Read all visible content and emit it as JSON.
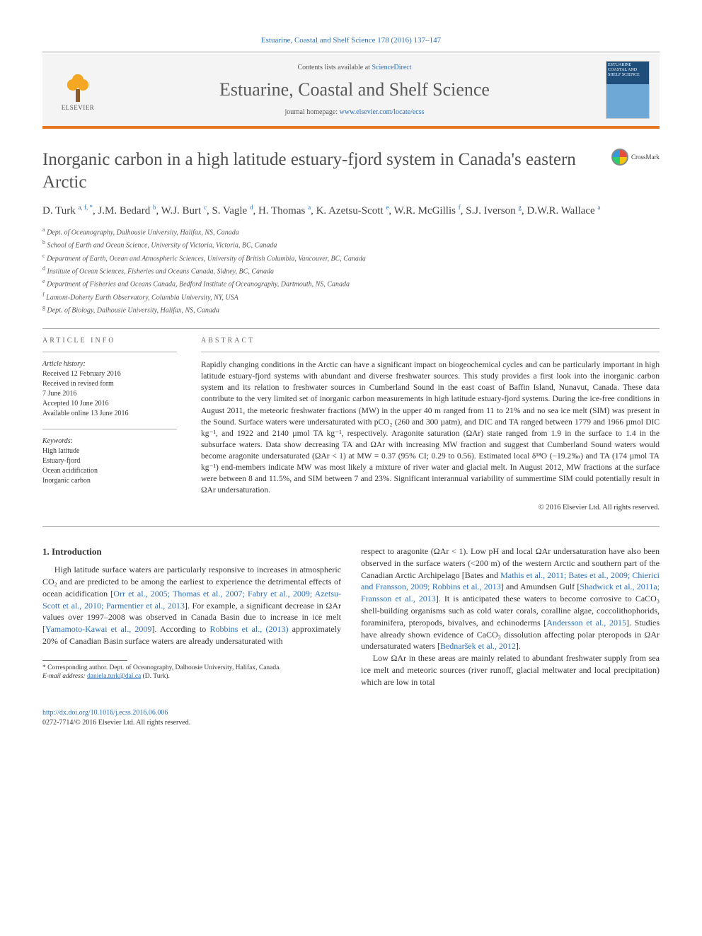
{
  "citation": "Estuarine, Coastal and Shelf Science 178 (2016) 137–147",
  "banner": {
    "contents_prefix": "Contents lists available at ",
    "contents_link": "ScienceDirect",
    "journal": "Estuarine, Coastal and Shelf Science",
    "homepage_prefix": "journal homepage: ",
    "homepage_link": "www.elsevier.com/locate/ecss",
    "elsevier_word": "ELSEVIER",
    "cover_text": "ESTUARINE COASTAL AND SHELF SCIENCE"
  },
  "crossmark_label": "CrossMark",
  "title": "Inorganic carbon in a high latitude estuary-fjord system in Canada's eastern Arctic",
  "authors_html": "D. Turk <sup>a, f, *</sup>, J.M. Bedard <sup>b</sup>, W.J. Burt <sup>c</sup>, S. Vagle <sup>d</sup>, H. Thomas <sup>a</sup>, K. Azetsu-Scott <sup>e</sup>, W.R. McGillis <sup>f</sup>, S.J. Iverson <sup>g</sup>, D.W.R. Wallace <sup>a</sup>",
  "affiliations": [
    "a Dept. of Oceanography, Dalhousie University, Halifax, NS, Canada",
    "b School of Earth and Ocean Science, University of Victoria, Victoria, BC, Canada",
    "c Department of Earth, Ocean and Atmospheric Sciences, University of British Columbia, Vancouver, BC, Canada",
    "d Institute of Ocean Sciences, Fisheries and Oceans Canada, Sidney, BC, Canada",
    "e Department of Fisheries and Oceans Canada, Bedford Institute of Oceanography, Dartmouth, NS, Canada",
    "f Lamont-Doherty Earth Observatory, Columbia University, NY, USA",
    "g Dept. of Biology, Dalhousie University, Halifax, NS, Canada"
  ],
  "info_heading": "ARTICLE INFO",
  "abstract_heading": "ABSTRACT",
  "history": {
    "head": "Article history:",
    "lines": [
      "Received 12 February 2016",
      "Received in revised form",
      "7 June 2016",
      "Accepted 10 June 2016",
      "Available online 13 June 2016"
    ]
  },
  "keywords": {
    "head": "Keywords:",
    "items": [
      "High latitude",
      "Estuary-fjord",
      "Ocean acidification",
      "Inorganic carbon"
    ]
  },
  "abstract_text": "Rapidly changing conditions in the Arctic can have a significant impact on biogeochemical cycles and can be particularly important in high latitude estuary-fjord systems with abundant and diverse freshwater sources. This study provides a first look into the inorganic carbon system and its relation to freshwater sources in Cumberland Sound in the east coast of Baffin Island, Nunavut, Canada. These data contribute to the very limited set of inorganic carbon measurements in high latitude estuary-fjord systems. During the ice-free conditions in August 2011, the meteoric freshwater fractions (MW) in the upper 40 m ranged from 11 to 21% and no sea ice melt (SIM) was present in the Sound. Surface waters were undersaturated with pCO₂ (260 and 300 µatm), and DIC and TA ranged between 1779 and 1966 µmol DIC kg⁻¹, and 1922 and 2140 µmol TA kg⁻¹, respectively. Aragonite saturation (ΩAr) state ranged from 1.9 in the surface to 1.4 in the subsurface waters. Data show decreasing TA and ΩAr with increasing MW fraction and suggest that Cumberland Sound waters would become aragonite undersaturated (ΩAr < 1) at MW = 0.37 (95% CI; 0.29 to 0.56). Estimated local δ¹⁸O (−19.2‰) and TA (174 µmol TA kg⁻¹) end-members indicate MW was most likely a mixture of river water and glacial melt. In August 2012, MW fractions at the surface were between 8 and 11.5%, and SIM between 7 and 23%. Significant interannual variability of summertime SIM could potentially result in ΩAr undersaturation.",
  "copyright": "© 2016 Elsevier Ltd. All rights reserved.",
  "section1": {
    "heading": "1. Introduction",
    "para1_pre": "High latitude surface waters are particularly responsive to increases in atmospheric CO₂ and are predicted to be among the earliest to experience the detrimental effects of ocean acidification [",
    "para1_ref1": "Orr et al., 2005; Thomas et al., 2007; Fabry et al., 2009; Azetsu-Scott et al., 2010; Parmentier et al., 2013",
    "para1_mid1": "]. For example, a significant decrease in ΩAr values over 1997–2008 was observed in Canada Basin due to increase in ice melt [",
    "para1_ref2": "Yamamoto-Kawai et al., 2009",
    "para1_mid2": "]. According to ",
    "para1_ref3": "Robbins et al., (2013)",
    "para1_post": " approximately 20% of Canadian Basin surface waters are already undersaturated with",
    "col2_p1_pre": "respect to aragonite (ΩAr < 1). Low pH and local ΩAr undersaturation have also been observed in the surface waters (<200 m) of the western Arctic and southern part of the Canadian Arctic Archipelago [Bates and ",
    "col2_p1_ref1": "Mathis et al., 2011; Bates et al., 2009; Chierici and Fransson, 2009; Robbins et al., 2013",
    "col2_p1_mid1": "] and Amundsen Gulf [",
    "col2_p1_ref2": "Shadwick et al., 2011a; Fransson et al., 2013",
    "col2_p1_mid2": "]. It is anticipated these waters to become corrosive to CaCO₃ shell-building organisms such as cold water corals, coralline algae, coccolithophorids, foraminifera, pteropods, bivalves, and echinoderms [",
    "col2_p1_ref3": "Andersson et al., 2015",
    "col2_p1_mid3": "]. Studies have already shown evidence of CaCO₃ dissolution affecting polar pteropods in ΩAr undersaturated waters [",
    "col2_p1_ref4": "Bednaršek et al., 2012",
    "col2_p1_post": "].",
    "col2_p2": "Low ΩAr in these areas are mainly related to abundant freshwater supply from sea ice melt and meteoric sources (river runoff, glacial meltwater and local precipitation) which are low in total"
  },
  "footnote": {
    "corr": "* Corresponding author. Dept. of Oceanography, Dalhousie University, Halifax, Canada.",
    "email_label": "E-mail address: ",
    "email": "daniela.turk@dal.ca",
    "email_suffix": " (D. Turk)."
  },
  "footer": {
    "doi": "http://dx.doi.org/10.1016/j.ecss.2016.06.006",
    "issn_line": "0272-7714/© 2016 Elsevier Ltd. All rights reserved."
  },
  "colors": {
    "link": "#2a6ebb",
    "orange_rule": "#e87722"
  }
}
